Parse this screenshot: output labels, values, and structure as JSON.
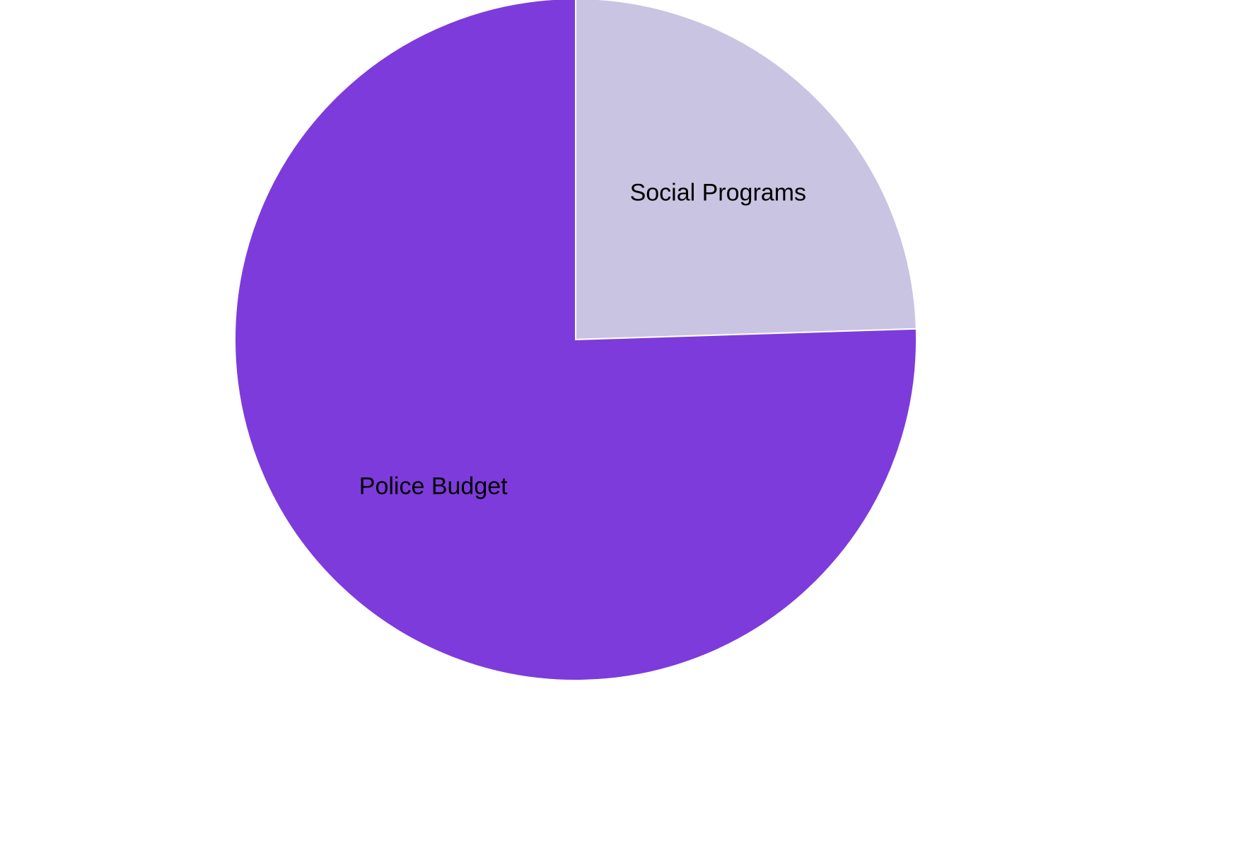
{
  "chart_data": {
    "type": "pie",
    "slices": [
      {
        "label": "Social Programs",
        "value": 24.5,
        "color": "#c9c4e2"
      },
      {
        "label": "Police Budget",
        "value": 75.5,
        "color": "#7e3bdb"
      }
    ],
    "start_angle": "12 o'clock",
    "direction": "clockwise",
    "slice_border_color": "#ffffff",
    "legend": "none"
  }
}
